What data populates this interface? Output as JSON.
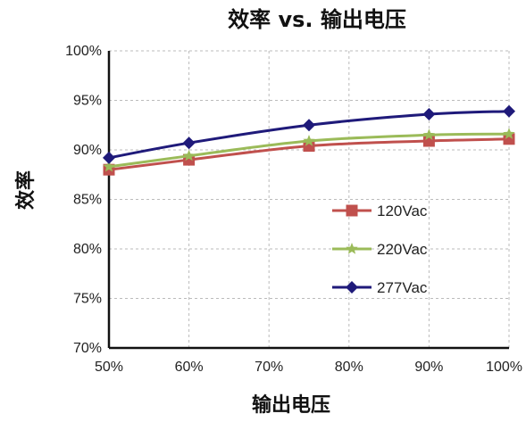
{
  "chart_data": {
    "type": "line",
    "title": "效率 vs. 输出电压",
    "xlabel": "输出电压",
    "ylabel": "效率",
    "categories": [
      "50%",
      "60%",
      "70%",
      "80%",
      "90%",
      "100%"
    ],
    "x": [
      50,
      60,
      75,
      90,
      100
    ],
    "x_range": [
      50,
      100
    ],
    "y_ticks": [
      "70%",
      "75%",
      "80%",
      "85%",
      "90%",
      "95%",
      "100%"
    ],
    "ylim": [
      70,
      100
    ],
    "grid": true,
    "legend_position": "bottom-right",
    "series": [
      {
        "name": "120Vac",
        "color": "#c0504d",
        "marker": "square",
        "values": [
          88.0,
          89.0,
          90.4,
          90.9,
          91.1
        ]
      },
      {
        "name": "220Vac",
        "color": "#9bbb59",
        "marker": "star",
        "values": [
          88.3,
          89.4,
          90.9,
          91.5,
          91.6
        ]
      },
      {
        "name": "277Vac",
        "color": "#1f1a7a",
        "marker": "diamond",
        "values": [
          89.2,
          90.7,
          92.5,
          93.6,
          93.9
        ]
      }
    ]
  }
}
